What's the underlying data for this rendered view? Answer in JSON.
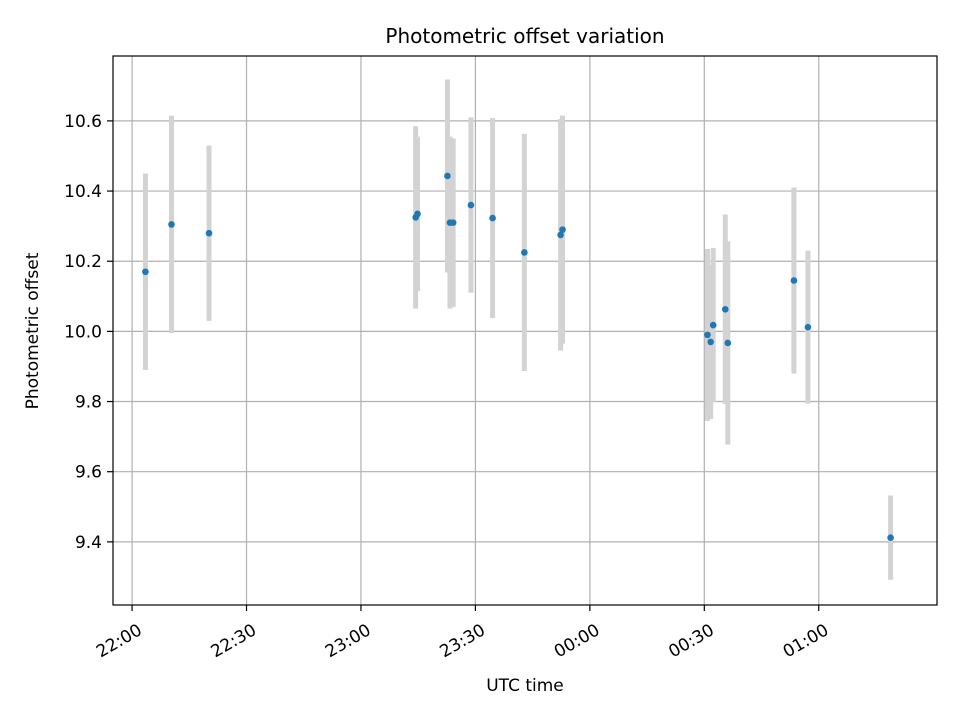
{
  "chart_data": {
    "type": "scatter",
    "title": "Photometric offset variation",
    "xlabel": "UTC time",
    "ylabel": "Photometric offset",
    "grid": true,
    "x_unit": "UTC time (HH:MM)",
    "xlim": [
      "21:55",
      "01:31"
    ],
    "ylim": [
      9.22,
      10.785
    ],
    "x_ticks": [
      "22:00",
      "22:30",
      "23:00",
      "23:30",
      "00:00",
      "00:30",
      "01:00"
    ],
    "y_ticks": [
      9.4,
      9.6,
      9.8,
      10.0,
      10.2,
      10.4,
      10.6
    ],
    "y_tick_labels": [
      "9.4",
      "9.6",
      "9.8",
      "10.0",
      "10.2",
      "10.4",
      "10.6"
    ],
    "colors": {
      "marker": "#1f77b4",
      "errorbar": "#d3d3d3",
      "grid": "#b0b0b0"
    },
    "series": [
      {
        "points": [
          {
            "x": "22:03:30",
            "y": 10.17,
            "y_err": 0.28
          },
          {
            "x": "22:10:20",
            "y": 10.305,
            "y_err": 0.31
          },
          {
            "x": "22:20:10",
            "y": 10.28,
            "y_err": 0.25
          },
          {
            "x": "23:14:20",
            "y": 10.325,
            "y_err": 0.26
          },
          {
            "x": "23:14:50",
            "y": 10.335,
            "y_err": 0.22
          },
          {
            "x": "23:22:40",
            "y": 10.443,
            "y_err": 0.275
          },
          {
            "x": "23:23:20",
            "y": 10.31,
            "y_err": 0.245
          },
          {
            "x": "23:24:10",
            "y": 10.31,
            "y_err": 0.24
          },
          {
            "x": "23:28:50",
            "y": 10.36,
            "y_err": 0.25
          },
          {
            "x": "23:34:30",
            "y": 10.323,
            "y_err": 0.285
          },
          {
            "x": "23:42:50",
            "y": 10.225,
            "y_err": 0.338
          },
          {
            "x": "23:52:20",
            "y": 10.275,
            "y_err": 0.33
          },
          {
            "x": "23:52:50",
            "y": 10.29,
            "y_err": 0.325
          },
          {
            "x": "00:30:50",
            "y": 9.99,
            "y_err": 0.245
          },
          {
            "x": "00:31:40",
            "y": 9.97,
            "y_err": 0.22
          },
          {
            "x": "00:32:20",
            "y": 10.018,
            "y_err": 0.22
          },
          {
            "x": "00:35:30",
            "y": 10.063,
            "y_err": 0.27
          },
          {
            "x": "00:36:10",
            "y": 9.967,
            "y_err": 0.29
          },
          {
            "x": "00:53:30",
            "y": 10.145,
            "y_err": 0.265
          },
          {
            "x": "00:57:10",
            "y": 10.012,
            "y_err": 0.218
          },
          {
            "x": "01:18:50",
            "y": 9.412,
            "y_err": 0.12
          }
        ]
      }
    ]
  }
}
